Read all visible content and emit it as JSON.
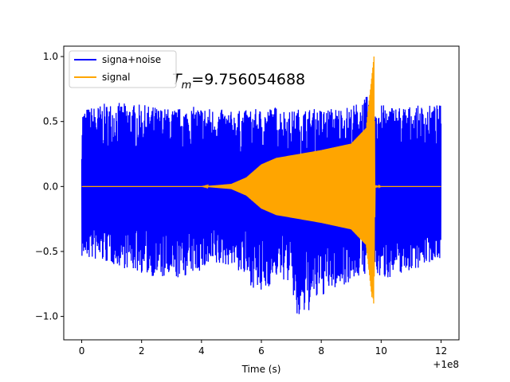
{
  "chart_data": {
    "type": "line",
    "xlabel": "Time (s)",
    "ylabel": "",
    "x_offset_label": "+1e8",
    "xlim": [
      -0.6,
      12.6
    ],
    "ylim": [
      -1.18,
      1.08
    ],
    "xticks": [
      0,
      2,
      4,
      6,
      8,
      10,
      12
    ],
    "xtick_labels": [
      "0",
      "2",
      "4",
      "6",
      "8",
      "10",
      "12"
    ],
    "yticks": [
      -1.0,
      -0.5,
      0.0,
      0.5,
      1.0
    ],
    "ytick_labels": [
      "−1.0",
      "−0.5",
      "0.0",
      "0.5",
      "1.0"
    ],
    "grid": false,
    "legend_placement": "top-left",
    "annotation": {
      "prefix": "T",
      "subscript": "m",
      "text": "=9.756054688"
    },
    "series": [
      {
        "name": "signa+noise",
        "color": "#0000ff",
        "description_points": {
          "x": [
            0,
            1,
            2,
            3,
            4,
            5,
            6,
            6.5,
            7,
            7.2,
            8,
            9,
            9.7,
            10,
            11,
            12
          ],
          "envelope_upper": [
            0.6,
            0.65,
            0.63,
            0.6,
            0.62,
            0.58,
            0.6,
            0.62,
            0.58,
            0.6,
            0.6,
            0.62,
            0.72,
            0.63,
            0.62,
            0.63
          ],
          "envelope_lower": [
            -0.55,
            -0.6,
            -0.67,
            -0.73,
            -0.65,
            -0.6,
            -0.85,
            -0.7,
            -0.75,
            -1.07,
            -0.85,
            -0.73,
            -0.65,
            -0.72,
            -0.65,
            -0.55
          ]
        }
      },
      {
        "name": "signal",
        "color": "#ffa500",
        "description_points": {
          "x": [
            0,
            4,
            5,
            5.5,
            6,
            6.5,
            7,
            8,
            9,
            9.5,
            9.76,
            9.8,
            10,
            12
          ],
          "amplitude": [
            0.0,
            0.0,
            0.02,
            0.07,
            0.17,
            0.22,
            0.24,
            0.28,
            0.33,
            0.45,
            1.0,
            0.01,
            0.0,
            0.0
          ]
        }
      }
    ]
  }
}
